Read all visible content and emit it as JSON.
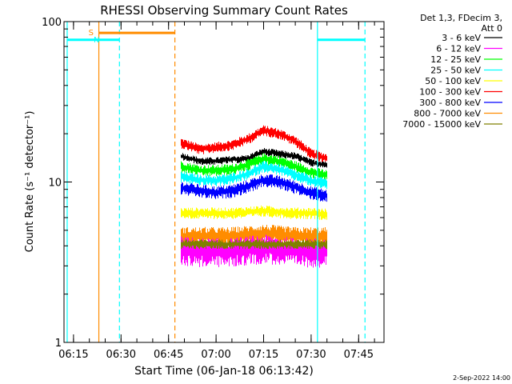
{
  "chart_data": {
    "type": "line",
    "title": "RHESSI Observing Summary Count Rates",
    "xlabel": "Start Time (06-Jan-18 06:13:42)",
    "ylabel": "Count Rate (s⁻¹ detector⁻¹)",
    "xlim": [
      "06:12",
      "07:53"
    ],
    "ylim": [
      1,
      100
    ],
    "y_scale": "log",
    "grid": false,
    "x_ticks": [
      "06:15",
      "06:30",
      "06:45",
      "07:00",
      "07:15",
      "07:30",
      "07:45"
    ],
    "y_ticks": [
      {
        "value": 1,
        "label": "1"
      },
      {
        "value": 10,
        "label": "10"
      },
      {
        "value": 100,
        "label": "100"
      }
    ],
    "legend": {
      "placement": "outside-right",
      "header": [
        "Det 1,3, FDecim 3,",
        "Att 0"
      ],
      "entries": [
        {
          "label": "3 - 6 keV",
          "color": "#000000"
        },
        {
          "label": "6 - 12 keV",
          "color": "#ff00ff"
        },
        {
          "label": "12 - 25 keV",
          "color": "#00ff00"
        },
        {
          "label": "25 - 50 keV",
          "color": "#00ffff"
        },
        {
          "label": "50 - 100 keV",
          "color": "#ffff00"
        },
        {
          "label": "100 - 300 keV",
          "color": "#ff0000"
        },
        {
          "label": "300 - 800 keV",
          "color": "#0000ff"
        },
        {
          "label": "800 - 7000 keV",
          "color": "#ff8c00"
        },
        {
          "label": "7000 - 15000 keV",
          "color": "#808000"
        }
      ]
    },
    "vertical_lines": [
      {
        "x": "06:13",
        "color": "#00ffff",
        "style": "solid"
      },
      {
        "x": "06:23",
        "color": "#ff8c00",
        "style": "solid"
      },
      {
        "x": "06:29.5",
        "color": "#00ffff",
        "style": "dashed"
      },
      {
        "x": "06:47",
        "color": "#ff8c00",
        "style": "dashed"
      },
      {
        "x": "07:32",
        "color": "#00ffff",
        "style": "solid"
      },
      {
        "x": "07:47",
        "color": "#00ffff",
        "style": "dashed"
      }
    ],
    "bars": [
      {
        "label": "S",
        "color": "#ff8c00",
        "x_start": "06:23",
        "x_end": "06:47",
        "y": 85
      },
      {
        "label": "N",
        "color": "#00ffff",
        "x_start": "06:13",
        "x_end": "06:29.5",
        "y": 77
      },
      {
        "label": "",
        "color": "#00ffff",
        "x_start": "07:32",
        "x_end": "07:47",
        "y": 77
      }
    ],
    "data_window": [
      "06:49",
      "07:35"
    ],
    "series": [
      {
        "name": "100 - 300 keV",
        "color": "#ff0000",
        "start": "06:49",
        "end": "07:35",
        "noise": 0.055,
        "x": [
          "06:49",
          "06:55",
          "07:00",
          "07:05",
          "07:10",
          "07:15",
          "07:20",
          "07:25",
          "07:30",
          "07:35"
        ],
        "values": [
          17.5,
          16.0,
          16.5,
          17.0,
          18.5,
          21.0,
          20.0,
          18.0,
          15.0,
          14.0
        ]
      },
      {
        "name": "3 - 6 keV",
        "color": "#000000",
        "start": "06:49",
        "end": "07:35",
        "noise": 0.04,
        "x": [
          "06:49",
          "06:55",
          "07:00",
          "07:05",
          "07:10",
          "07:15",
          "07:20",
          "07:25",
          "07:30",
          "07:35"
        ],
        "values": [
          14.5,
          13.5,
          13.5,
          13.8,
          14.0,
          15.5,
          15.0,
          14.5,
          13.2,
          12.8
        ]
      },
      {
        "name": "12 - 25 keV",
        "color": "#00ff00",
        "start": "06:49",
        "end": "07:35",
        "noise": 0.06,
        "x": [
          "06:49",
          "06:55",
          "07:00",
          "07:05",
          "07:10",
          "07:15",
          "07:20",
          "07:25",
          "07:30",
          "07:35"
        ],
        "values": [
          12.5,
          11.8,
          11.8,
          12.0,
          12.8,
          14.0,
          13.5,
          12.5,
          11.5,
          11.0
        ]
      },
      {
        "name": "25 - 50 keV",
        "color": "#00ffff",
        "start": "06:49",
        "end": "07:35",
        "noise": 0.06,
        "x": [
          "06:49",
          "06:55",
          "07:00",
          "07:05",
          "07:10",
          "07:15",
          "07:20",
          "07:25",
          "07:30",
          "07:35"
        ],
        "values": [
          10.8,
          10.3,
          10.2,
          10.5,
          11.2,
          12.5,
          12.0,
          11.0,
          10.2,
          9.8
        ]
      },
      {
        "name": "300 - 800 keV",
        "color": "#0000ff",
        "start": "06:49",
        "end": "07:35",
        "noise": 0.07,
        "x": [
          "06:49",
          "06:55",
          "07:00",
          "07:05",
          "07:10",
          "07:15",
          "07:20",
          "07:25",
          "07:30",
          "07:35"
        ],
        "values": [
          9.2,
          8.8,
          8.6,
          8.8,
          9.4,
          10.3,
          10.0,
          9.3,
          8.6,
          8.2
        ]
      },
      {
        "name": "50 - 100 keV",
        "color": "#ffff00",
        "start": "06:49",
        "end": "07:35",
        "noise": 0.06,
        "x": [
          "06:49",
          "06:55",
          "07:00",
          "07:05",
          "07:10",
          "07:15",
          "07:20",
          "07:25",
          "07:30",
          "07:35"
        ],
        "values": [
          6.4,
          6.4,
          6.4,
          6.4,
          6.5,
          6.6,
          6.5,
          6.4,
          6.4,
          6.3
        ]
      },
      {
        "name": "800 - 7000 keV",
        "color": "#ff8c00",
        "start": "06:49",
        "end": "07:35",
        "noise": 0.1,
        "x": [
          "06:49",
          "06:55",
          "07:00",
          "07:05",
          "07:10",
          "07:15",
          "07:20",
          "07:25",
          "07:30",
          "07:35"
        ],
        "values": [
          4.6,
          4.6,
          4.6,
          4.6,
          4.7,
          4.8,
          4.7,
          4.6,
          4.6,
          4.6
        ]
      },
      {
        "name": "6 - 12 keV",
        "color": "#ff00ff",
        "start": "06:49",
        "end": "07:35",
        "noise": 0.15,
        "x": [
          "06:49",
          "06:55",
          "07:00",
          "07:05",
          "07:10",
          "07:15",
          "07:20",
          "07:25",
          "07:30",
          "07:35"
        ],
        "values": [
          3.8,
          3.7,
          3.7,
          3.7,
          3.8,
          3.9,
          3.8,
          3.7,
          3.7,
          3.7
        ]
      },
      {
        "name": "7000 - 15000 keV",
        "color": "#808000",
        "start": "06:49",
        "end": "07:35",
        "noise": 0.05,
        "x": [
          "06:49",
          "06:55",
          "07:00",
          "07:05",
          "07:10",
          "07:15",
          "07:20",
          "07:25",
          "07:30",
          "07:35"
        ],
        "values": [
          4.1,
          4.1,
          4.1,
          4.1,
          4.1,
          4.1,
          4.1,
          4.1,
          4.1,
          4.1
        ]
      }
    ],
    "footer": "2-Sep-2022 14:00"
  }
}
